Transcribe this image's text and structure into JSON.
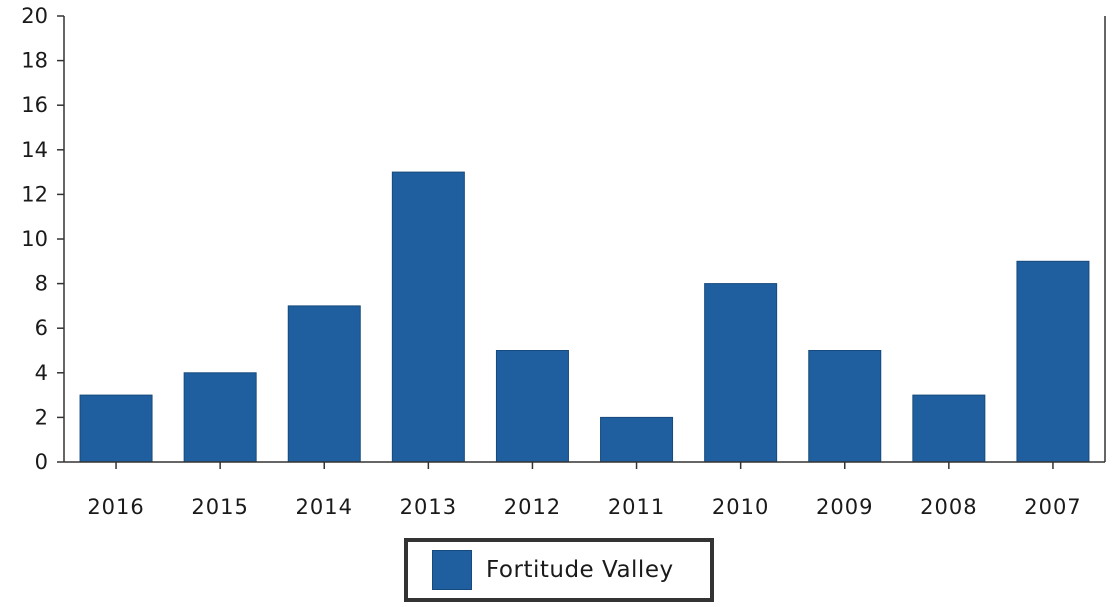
{
  "chart_data": {
    "type": "bar",
    "categories": [
      "2016",
      "2015",
      "2014",
      "2013",
      "2012",
      "2011",
      "2010",
      "2009",
      "2008",
      "2007"
    ],
    "series": [
      {
        "name": "Fortitude Valley",
        "values": [
          3,
          4,
          7,
          13,
          5,
          2,
          8,
          5,
          3,
          9
        ],
        "color": "#1f5f9f"
      }
    ],
    "ylim": [
      0,
      20
    ],
    "yticks": [
      0,
      2,
      4,
      6,
      8,
      10,
      12,
      14,
      16,
      18,
      20
    ],
    "grid": false,
    "legend_position": "bottom-center",
    "title": "",
    "xlabel": "",
    "ylabel": ""
  },
  "legend": {
    "label": "Fortitude Valley"
  }
}
